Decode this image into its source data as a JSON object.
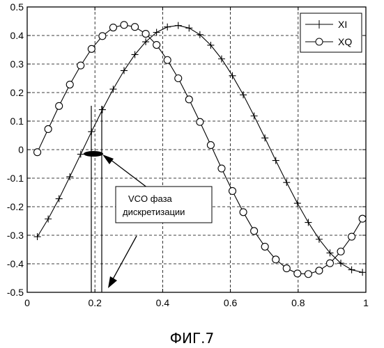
{
  "caption": "ФИГ.7",
  "annotation": {
    "line1": "VCO фаза",
    "line2": "дискретизации"
  },
  "chart_data": {
    "type": "line",
    "title": "",
    "xlabel": "",
    "ylabel": "",
    "xlim": [
      0,
      1
    ],
    "ylim": [
      -0.5,
      0.5
    ],
    "xticks": [
      0,
      0.2,
      0.4,
      0.6,
      0.8,
      1
    ],
    "xtick_labels": [
      "0",
      "0.2",
      "0.4",
      "0.6",
      "0.8",
      "1"
    ],
    "yticks": [
      -0.5,
      -0.4,
      -0.3,
      -0.2,
      -0.1,
      0,
      0.1,
      0.2,
      0.3,
      0.4,
      0.5
    ],
    "ytick_labels": [
      "-0.5",
      "-0.4",
      "-0.3",
      "-0.2",
      "-0.1",
      "0",
      "0.1",
      "0.2",
      "0.3",
      "0.4",
      "0.5"
    ],
    "grid": true,
    "legend_position": "top-right",
    "series": [
      {
        "name": "XI",
        "marker": "plus",
        "x": [
          0.03,
          0.062,
          0.094,
          0.126,
          0.158,
          0.19,
          0.222,
          0.254,
          0.286,
          0.318,
          0.35,
          0.382,
          0.414,
          0.446,
          0.478,
          0.51,
          0.542,
          0.574,
          0.606,
          0.638,
          0.67,
          0.702,
          0.734,
          0.766,
          0.798,
          0.83,
          0.862,
          0.894,
          0.926,
          0.958,
          0.99
        ],
        "y": [
          -0.305,
          -0.243,
          -0.172,
          -0.095,
          -0.016,
          0.063,
          0.14,
          0.212,
          0.277,
          0.333,
          0.378,
          0.411,
          0.43,
          0.435,
          0.426,
          0.403,
          0.366,
          0.318,
          0.259,
          0.192,
          0.118,
          0.041,
          -0.038,
          -0.115,
          -0.188,
          -0.255,
          -0.314,
          -0.362,
          -0.398,
          -0.421,
          -0.43
        ]
      },
      {
        "name": "XQ",
        "marker": "circle",
        "x": [
          0.03,
          0.062,
          0.094,
          0.126,
          0.158,
          0.19,
          0.222,
          0.254,
          0.286,
          0.318,
          0.35,
          0.382,
          0.414,
          0.446,
          0.478,
          0.51,
          0.542,
          0.574,
          0.606,
          0.638,
          0.67,
          0.702,
          0.734,
          0.766,
          0.798,
          0.83,
          0.862,
          0.894,
          0.926,
          0.958,
          0.99
        ],
        "y": [
          -0.009,
          0.072,
          0.153,
          0.228,
          0.295,
          0.353,
          0.398,
          0.428,
          0.437,
          0.43,
          0.406,
          0.367,
          0.314,
          0.25,
          0.176,
          0.097,
          0.016,
          -0.066,
          -0.145,
          -0.219,
          -0.285,
          -0.34,
          -0.385,
          -0.416,
          -0.434,
          -0.436,
          -0.424,
          -0.398,
          -0.357,
          -0.305,
          -0.242
        ]
      }
    ]
  }
}
